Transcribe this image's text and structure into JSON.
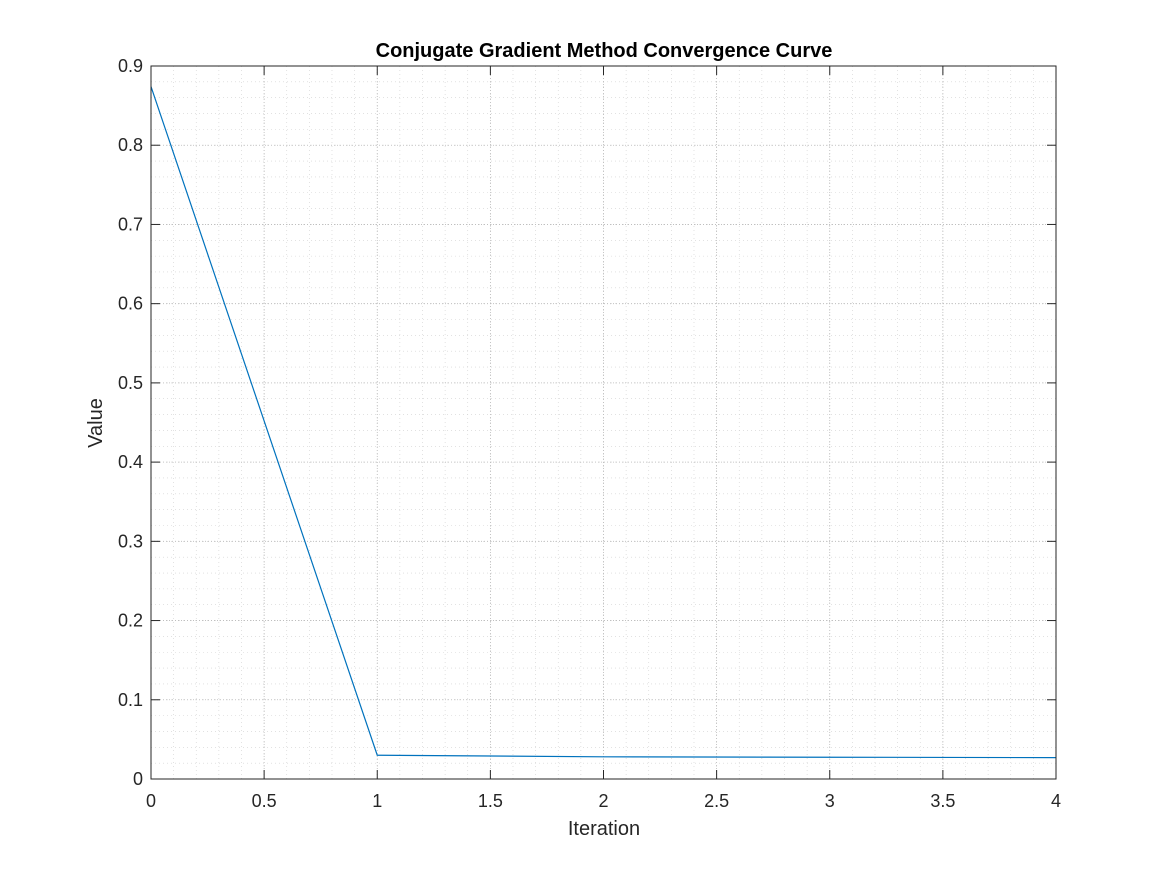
{
  "chart_data": {
    "type": "line",
    "title": "Conjugate Gradient Method Convergence Curve",
    "xlabel": "Iteration",
    "ylabel": "Value",
    "xlim": [
      0,
      4
    ],
    "ylim": [
      0,
      0.9
    ],
    "xticks": [
      "0",
      "0.5",
      "1",
      "1.5",
      "2",
      "2.5",
      "3",
      "3.5",
      "4"
    ],
    "yticks": [
      "0",
      "0.1",
      "0.2",
      "0.3",
      "0.4",
      "0.5",
      "0.6",
      "0.7",
      "0.8",
      "0.9"
    ],
    "grid": "on (major + minor, dotted)",
    "series": [
      {
        "x": [
          0,
          1,
          2,
          3,
          4
        ],
        "y": [
          0.874,
          0.03,
          0.028,
          0.0275,
          0.027
        ],
        "color": "#0072BD"
      }
    ]
  }
}
